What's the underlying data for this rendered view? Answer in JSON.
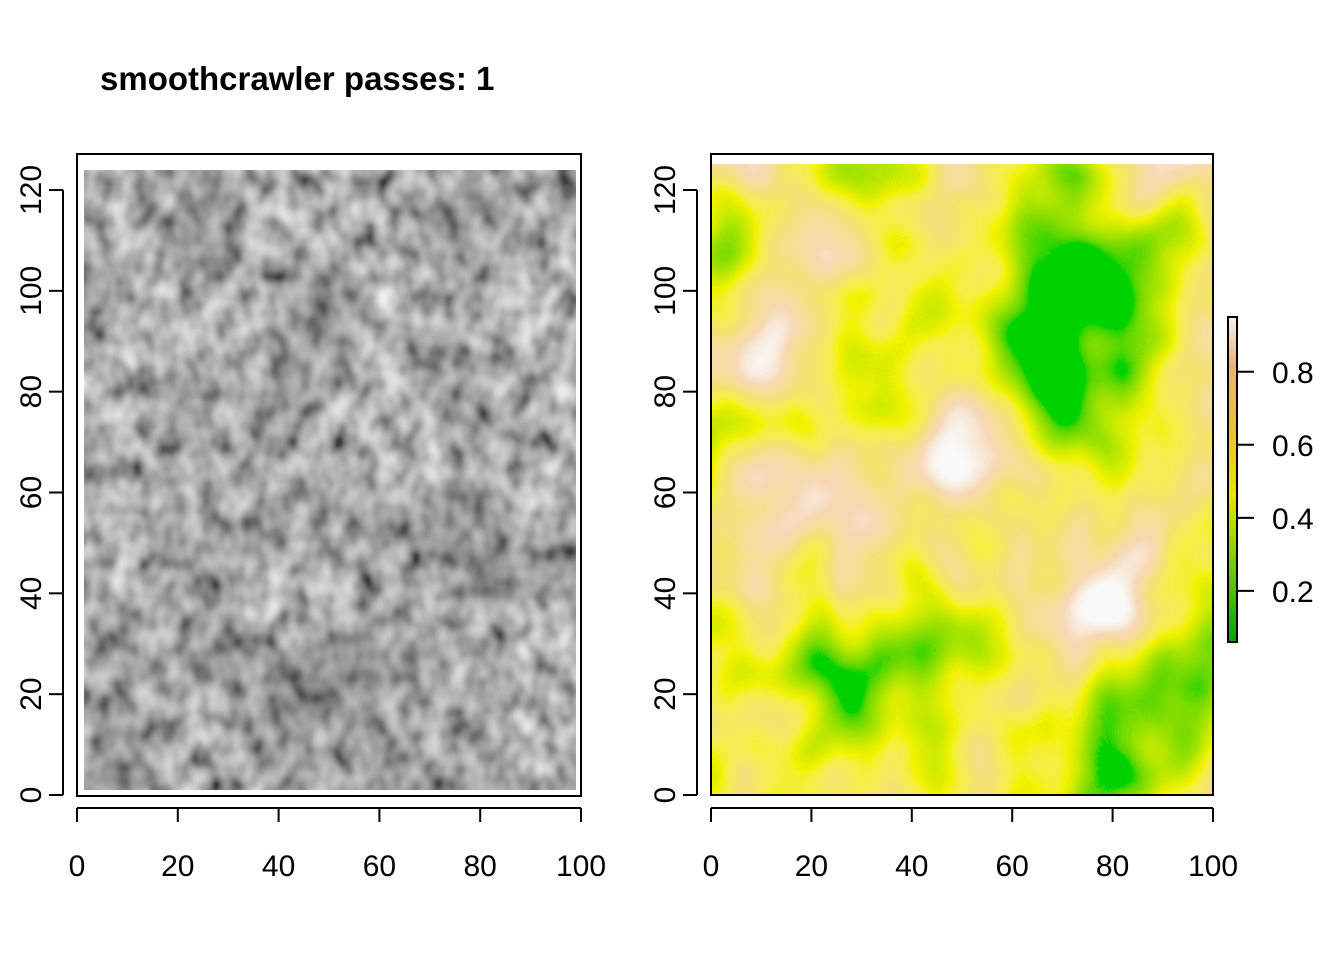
{
  "chart_data": [
    {
      "type": "heatmap",
      "title": "smoothcrawler passes: 1",
      "xlabel": "",
      "ylabel": "",
      "xlim": [
        0,
        100
      ],
      "ylim": [
        0,
        125
      ],
      "x_ticks": [
        0,
        20,
        40,
        60,
        80,
        100
      ],
      "y_ticks": [
        0,
        20,
        40,
        60,
        80,
        100,
        120
      ],
      "x_tick_labels": [
        "0",
        "20",
        "40",
        "60",
        "80",
        "100"
      ],
      "y_tick_labels": [
        "0",
        "20",
        "40",
        "60",
        "80",
        "100",
        "120"
      ],
      "raster_extent": {
        "x": [
          1,
          99
        ],
        "y": [
          1,
          123
        ]
      },
      "palette": [
        "#1a1a1a",
        "#f2f2f2"
      ],
      "legend": "none"
    },
    {
      "type": "heatmap",
      "title": "",
      "xlabel": "",
      "ylabel": "",
      "xlim": [
        0,
        100
      ],
      "ylim": [
        0,
        125
      ],
      "x_ticks": [
        0,
        20,
        40,
        60,
        80,
        100
      ],
      "y_ticks": [
        0,
        20,
        40,
        60,
        80,
        100,
        120
      ],
      "x_tick_labels": [
        "0",
        "20",
        "40",
        "60",
        "80",
        "100"
      ],
      "y_tick_labels": [
        "0",
        "20",
        "40",
        "60",
        "80",
        "100",
        "120"
      ],
      "raster_extent": {
        "x": [
          0,
          100
        ],
        "y": [
          0,
          125
        ]
      },
      "value_range": [
        0.06,
        0.95
      ],
      "colorbar": {
        "ticks": [
          0.2,
          0.4,
          0.6,
          0.8
        ],
        "tick_labels": [
          "0.2",
          "0.4",
          "0.6",
          "0.8"
        ]
      },
      "palette": [
        "#00a600",
        "#63c600",
        "#e6e600",
        "#e8c32e",
        "#ecb176",
        "#f2f2f2"
      ],
      "legend": "right"
    }
  ]
}
